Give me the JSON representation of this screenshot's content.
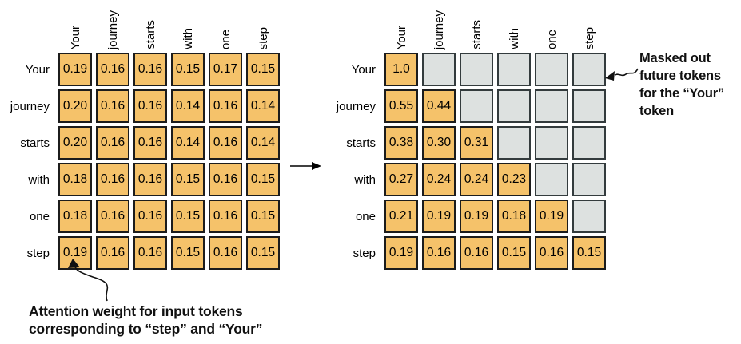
{
  "colors": {
    "cell_orange": "#f5c26a",
    "cell_masked": "#dde1e0",
    "cell_border_orange": "#1c1c1c",
    "cell_border_masked": "#333b3d",
    "background": "#ffffff",
    "text": "#000000"
  },
  "tokens": [
    "Your",
    "journey",
    "starts",
    "with",
    "one",
    "step"
  ],
  "left_matrix": {
    "title": "attention-weights-unmasked",
    "col_headers": [
      "Your",
      "journey",
      "starts",
      "with",
      "one",
      "step"
    ],
    "row_headers": [
      "Your",
      "journey",
      "starts",
      "with",
      "one",
      "step"
    ],
    "rows": [
      [
        "0.19",
        "0.16",
        "0.16",
        "0.15",
        "0.17",
        "0.15"
      ],
      [
        "0.20",
        "0.16",
        "0.16",
        "0.14",
        "0.16",
        "0.14"
      ],
      [
        "0.20",
        "0.16",
        "0.16",
        "0.14",
        "0.16",
        "0.14"
      ],
      [
        "0.18",
        "0.16",
        "0.16",
        "0.15",
        "0.16",
        "0.15"
      ],
      [
        "0.18",
        "0.16",
        "0.16",
        "0.15",
        "0.16",
        "0.15"
      ],
      [
        "0.19",
        "0.16",
        "0.16",
        "0.15",
        "0.16",
        "0.15"
      ]
    ]
  },
  "right_matrix": {
    "title": "attention-weights-causal-masked",
    "col_headers": [
      "Your",
      "journey",
      "starts",
      "with",
      "one",
      "step"
    ],
    "row_headers": [
      "Your",
      "journey",
      "starts",
      "with",
      "one",
      "step"
    ],
    "rows": [
      [
        "1.0",
        null,
        null,
        null,
        null,
        null
      ],
      [
        "0.55",
        "0.44",
        null,
        null,
        null,
        null
      ],
      [
        "0.38",
        "0.30",
        "0.31",
        null,
        null,
        null
      ],
      [
        "0.27",
        "0.24",
        "0.24",
        "0.23",
        null,
        null
      ],
      [
        "0.21",
        "0.19",
        "0.19",
        "0.18",
        "0.19",
        null
      ],
      [
        "0.19",
        "0.16",
        "0.16",
        "0.15",
        "0.16",
        "0.15"
      ]
    ]
  },
  "annotations": {
    "bottom_left_lines": [
      "Attention weight for input tokens",
      "corresponding to “step” and “Your”"
    ],
    "right_lines": [
      "Masked out",
      "future tokens",
      "for the “Your”",
      "token"
    ]
  },
  "icons": {
    "transform_arrow": "right-arrow",
    "bottom_pointer": "curved-arrow-up",
    "right_pointer": "squiggle-arrow-left"
  }
}
